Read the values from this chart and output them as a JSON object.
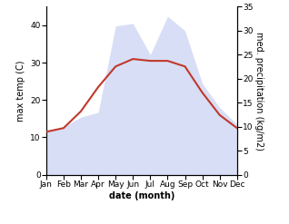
{
  "months": [
    "Jan",
    "Feb",
    "Mar",
    "Apr",
    "May",
    "Jun",
    "Jul",
    "Aug",
    "Sep",
    "Oct",
    "Nov",
    "Dec"
  ],
  "x": [
    1,
    2,
    3,
    4,
    5,
    6,
    7,
    8,
    9,
    10,
    11,
    12
  ],
  "temp": [
    11.5,
    12.5,
    17.0,
    23.5,
    29.0,
    31.0,
    30.5,
    30.5,
    29.0,
    22.0,
    16.0,
    12.5
  ],
  "precip": [
    9.0,
    10.0,
    12.0,
    13.0,
    31.0,
    31.5,
    25.0,
    33.0,
    30.0,
    19.0,
    14.0,
    10.5
  ],
  "temp_color": "#c0392b",
  "precip_fill_color": "#b8c4ee",
  "ylabel_left": "max temp (C)",
  "ylabel_right": "med. precipitation (kg/m2)",
  "xlabel": "date (month)",
  "ylim_left": [
    0,
    45
  ],
  "ylim_right": [
    0,
    35
  ],
  "yticks_left": [
    0,
    10,
    20,
    30,
    40
  ],
  "yticks_right": [
    0,
    5,
    10,
    15,
    20,
    25,
    30,
    35
  ],
  "label_fontsize": 7,
  "tick_fontsize": 6.5
}
